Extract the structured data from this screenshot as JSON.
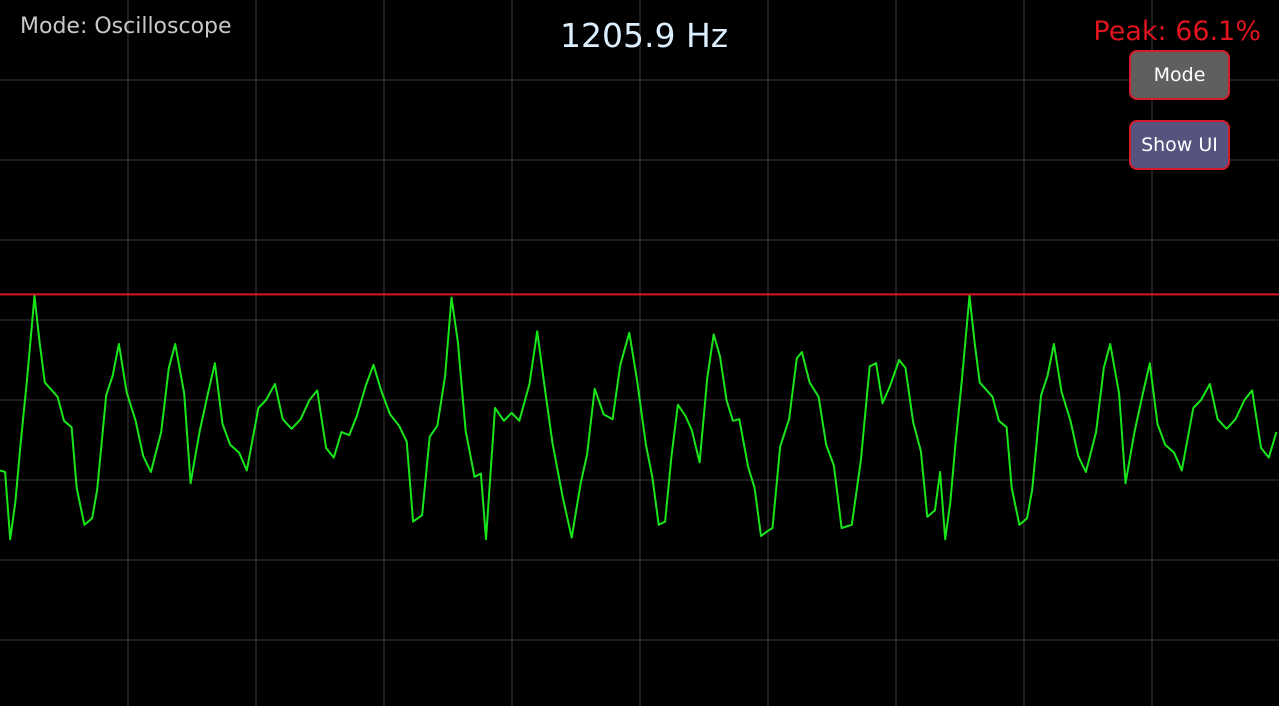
{
  "app": {
    "mode_label": "Mode: Oscilloscope",
    "frequency": "1205.9 Hz",
    "peak": "Peak: 66.1%"
  },
  "buttons": {
    "mode_label": "Mode",
    "show_ui_label": "Show UI"
  },
  "colors": {
    "background": "#000000",
    "grid": "#3a3a3a",
    "waveform": "#19e619",
    "peak_line": "#e0141e",
    "frequency_text": "#dcefff",
    "mode_text": "#c8c8c8"
  },
  "chart_data": {
    "type": "line",
    "grid": true,
    "grid_columns": 10,
    "grid_rows": 9,
    "ylim": [
      -1,
      1
    ],
    "xlim": [
      0,
      1
    ],
    "peak_level": 0.66,
    "series": [
      {
        "points": [
          [
            0,
            -0.44
          ],
          [
            0.004,
            -0.45
          ],
          [
            0.008,
            -0.87
          ],
          [
            0.012,
            -0.64
          ],
          [
            0.016,
            -0.28
          ],
          [
            0.021,
            0.12
          ],
          [
            0.027,
            0.65
          ],
          [
            0.031,
            0.36
          ],
          [
            0.035,
            0.11
          ],
          [
            0.045,
            0.02
          ],
          [
            0.05,
            -0.13
          ],
          [
            0.056,
            -0.17
          ],
          [
            0.06,
            -0.55
          ],
          [
            0.066,
            -0.78
          ],
          [
            0.072,
            -0.74
          ],
          [
            0.076,
            -0.56
          ],
          [
            0.083,
            0.03
          ],
          [
            0.088,
            0.15
          ],
          [
            0.093,
            0.35
          ],
          [
            0.099,
            0.05
          ],
          [
            0.106,
            -0.13
          ],
          [
            0.112,
            -0.35
          ],
          [
            0.118,
            -0.45
          ],
          [
            0.126,
            -0.2
          ],
          [
            0.132,
            0.2
          ],
          [
            0.137,
            0.35
          ],
          [
            0.144,
            0.04
          ],
          [
            0.149,
            -0.52
          ],
          [
            0.156,
            -0.2
          ],
          [
            0.162,
            0.02
          ],
          [
            0.168,
            0.23
          ],
          [
            0.174,
            -0.15
          ],
          [
            0.18,
            -0.28
          ],
          [
            0.187,
            -0.33
          ],
          [
            0.193,
            -0.44
          ],
          [
            0.202,
            -0.05
          ],
          [
            0.208,
            0.0
          ],
          [
            0.215,
            0.1
          ],
          [
            0.221,
            -0.12
          ],
          [
            0.228,
            -0.18
          ],
          [
            0.235,
            -0.12
          ],
          [
            0.242,
            0.0
          ],
          [
            0.248,
            0.06
          ],
          [
            0.255,
            -0.3
          ],
          [
            0.261,
            -0.36
          ],
          [
            0.267,
            -0.2
          ],
          [
            0.273,
            -0.22
          ],
          [
            0.279,
            -0.1
          ],
          [
            0.286,
            0.09
          ],
          [
            0.292,
            0.22
          ],
          [
            0.298,
            0.06
          ],
          [
            0.305,
            -0.09
          ],
          [
            0.312,
            -0.16
          ],
          [
            0.318,
            -0.26
          ],
          [
            0.323,
            -0.76
          ],
          [
            0.33,
            -0.72
          ],
          [
            0.336,
            -0.23
          ],
          [
            0.342,
            -0.16
          ],
          [
            0.348,
            0.15
          ],
          [
            0.353,
            0.64
          ],
          [
            0.358,
            0.36
          ],
          [
            0.364,
            -0.19
          ],
          [
            0.371,
            -0.48
          ],
          [
            0.376,
            -0.46
          ],
          [
            0.38,
            -0.87
          ],
          [
            0.387,
            -0.05
          ],
          [
            0.394,
            -0.13
          ],
          [
            0.4,
            -0.08
          ],
          [
            0.406,
            -0.13
          ],
          [
            0.414,
            0.1
          ],
          [
            0.42,
            0.43
          ],
          [
            0.426,
            0.07
          ],
          [
            0.432,
            -0.27
          ],
          [
            0.44,
            -0.61
          ],
          [
            0.447,
            -0.86
          ],
          [
            0.454,
            -0.52
          ],
          [
            0.459,
            -0.34
          ],
          [
            0.465,
            0.07
          ],
          [
            0.472,
            -0.09
          ],
          [
            0.479,
            -0.12
          ],
          [
            0.485,
            0.22
          ],
          [
            0.492,
            0.42
          ],
          [
            0.498,
            0.13
          ],
          [
            0.505,
            -0.28
          ],
          [
            0.51,
            -0.48
          ],
          [
            0.515,
            -0.78
          ],
          [
            0.52,
            -0.76
          ],
          [
            0.525,
            -0.35
          ],
          [
            0.53,
            -0.03
          ],
          [
            0.536,
            -0.1
          ],
          [
            0.541,
            -0.19
          ],
          [
            0.547,
            -0.39
          ],
          [
            0.553,
            0.14
          ],
          [
            0.558,
            0.41
          ],
          [
            0.563,
            0.27
          ],
          [
            0.568,
            0.0
          ],
          [
            0.573,
            -0.13
          ],
          [
            0.578,
            -0.12
          ],
          [
            0.585,
            -0.42
          ],
          [
            0.59,
            -0.55
          ],
          [
            0.595,
            -0.85
          ],
          [
            0.6,
            -0.82
          ],
          [
            0.604,
            -0.8
          ],
          [
            0.61,
            -0.29
          ],
          [
            0.617,
            -0.12
          ],
          [
            0.623,
            0.26
          ],
          [
            0.627,
            0.3
          ],
          [
            0.633,
            0.11
          ],
          [
            0.64,
            0.02
          ],
          [
            0.646,
            -0.28
          ],
          [
            0.652,
            -0.41
          ],
          [
            0.658,
            -0.8
          ],
          [
            0.666,
            -0.78
          ],
          [
            0.673,
            -0.38
          ],
          [
            0.68,
            0.21
          ],
          [
            0.685,
            0.23
          ],
          [
            0.69,
            -0.02
          ],
          [
            0.696,
            0.09
          ],
          [
            0.703,
            0.25
          ],
          [
            0.708,
            0.2
          ],
          [
            0.714,
            -0.14
          ],
          [
            0.72,
            -0.32
          ],
          [
            0.725,
            -0.73
          ],
          [
            0.731,
            -0.69
          ]
        ]
      }
    ]
  }
}
